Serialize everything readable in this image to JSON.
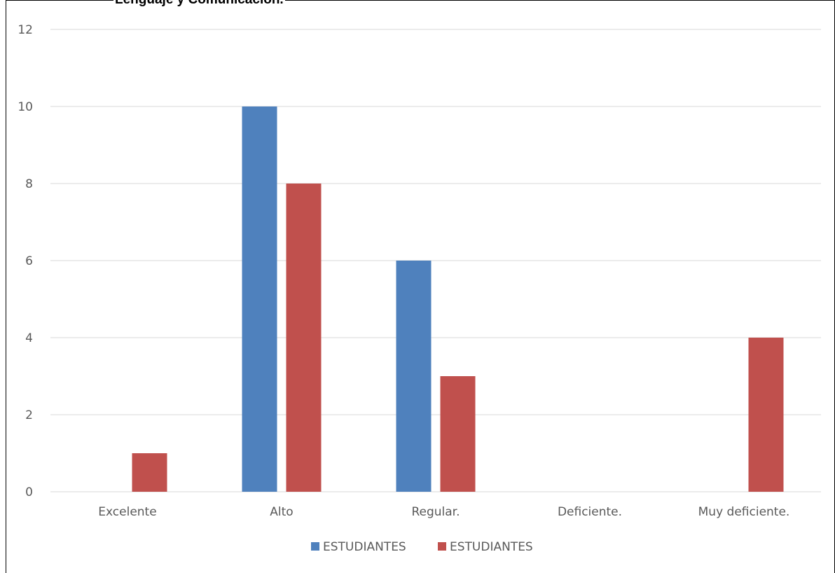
{
  "chart_data": {
    "type": "bar",
    "title": "Lenguaje y Comunicación.",
    "categories": [
      "Excelente",
      "Alto",
      "Regular.",
      "Deficiente.",
      "Muy deficiente."
    ],
    "series": [
      {
        "name": "ESTUDIANTES",
        "color": "#4F81BD",
        "values": [
          0,
          10,
          6,
          0,
          0
        ]
      },
      {
        "name": "ESTUDIANTES",
        "color": "#C0504D",
        "values": [
          1,
          8,
          3,
          0,
          4
        ]
      }
    ],
    "ylim": [
      0,
      12
    ],
    "yticks": [
      0,
      2,
      4,
      6,
      8,
      10,
      12
    ],
    "grid": true,
    "legend": "bottom"
  }
}
